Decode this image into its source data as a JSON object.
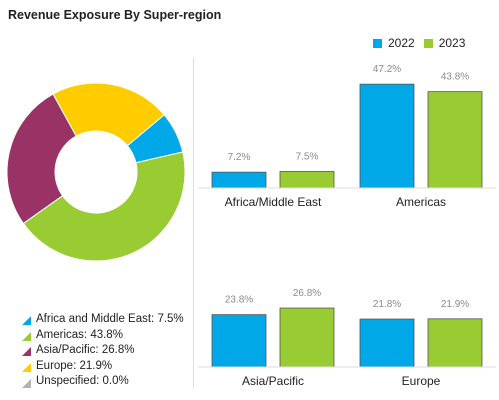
{
  "chart_data": [
    {
      "type": "pie",
      "style": "donut",
      "title": "Revenue Exposure By Super-region",
      "slices": [
        {
          "label": "Africa and Middle East",
          "value": 7.5,
          "color": "#00a8e8",
          "legend": "Africa and Middle East: 7.5%"
        },
        {
          "label": "Americas",
          "value": 43.8,
          "color": "#99cc33",
          "legend": "Americas: 43.8%"
        },
        {
          "label": "Asia/Pacific",
          "value": 26.8,
          "color": "#993366",
          "legend": "Asia/Pacific: 26.8%"
        },
        {
          "label": "Europe",
          "value": 21.9,
          "color": "#ffcc00",
          "legend": "Europe: 21.9%"
        },
        {
          "label": "Unspecified",
          "value": 0.0,
          "color": "#b3b3b3",
          "legend": "Unspecified: 0.0%"
        }
      ],
      "legend_position": "bottom-left"
    },
    {
      "type": "bar",
      "series": [
        {
          "name": "2022",
          "color": "#00a8e8"
        },
        {
          "name": "2023",
          "color": "#99cc33"
        }
      ],
      "panels": [
        {
          "category": "Africa/Middle East",
          "values": [
            7.2,
            7.5
          ],
          "labels": [
            "7.2%",
            "7.5%"
          ]
        },
        {
          "category": "Americas",
          "values": [
            47.2,
            43.8
          ],
          "labels": [
            "47.2%",
            "43.8%"
          ]
        },
        {
          "category": "Asia/Pacific",
          "values": [
            23.8,
            26.8
          ],
          "labels": [
            "23.8%",
            "26.8%"
          ]
        },
        {
          "category": "Europe",
          "values": [
            21.8,
            21.9
          ],
          "labels": [
            "21.8%",
            "21.9%"
          ]
        }
      ],
      "legend_position": "top-right",
      "grid": false
    }
  ]
}
